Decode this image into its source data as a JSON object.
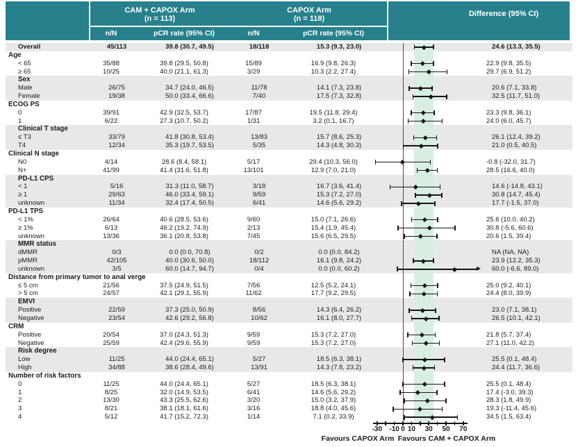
{
  "header": {
    "arm1_title": "CAM + CAPOX Arm",
    "arm1_n": "(n = 113)",
    "arm2_title": "CAPOX Arm",
    "arm2_n": "(n = 118)",
    "nN_label": "n/N",
    "pcr_label": "pCR rate (95% CI)",
    "diff_label": "Difference (95% CI)"
  },
  "footer": {
    "favours_left": "Favours CAPOX Arm",
    "favours_right": "Favours CAM + CAPOX Arm"
  },
  "colors": {
    "header_bg": "#27808C",
    "header_text": "#FFFFFF",
    "row_shade": "#E8E8E8",
    "overall_band": "#D9EEE3",
    "marker": "#141414",
    "zero_line": "#4A4A4A",
    "text": "#1A1A1A"
  },
  "chart_data": {
    "type": "forest",
    "x_axis": {
      "all_ticks": [
        -30,
        -20,
        -10,
        0,
        10,
        20,
        30,
        40,
        50,
        60,
        70
      ],
      "labeled_ticks": [
        -30,
        -10,
        0,
        10,
        30,
        50,
        70
      ],
      "range": [
        -35,
        73
      ],
      "zero_reference": 0,
      "shaded_band": [
        13.3,
        35.5
      ],
      "favours_left": "Favours CAPOX Arm",
      "favours_right": "Favours CAM + CAPOX Arm"
    },
    "arms": [
      {
        "name": "CAM + CAPOX Arm",
        "n": 113
      },
      {
        "name": "CAPOX Arm",
        "n": 118
      }
    ],
    "columns": [
      "n/N",
      "pCR rate (95% CI)",
      "n/N",
      "pCR rate (95% CI)",
      "Difference (95% CI)"
    ],
    "sections": [
      {
        "header": null,
        "shaded": true,
        "rows": [
          {
            "label": "Overall",
            "bold": true,
            "nN1": "45/113",
            "pcr1": "39.8 (30.7, 49.5)",
            "nN2": "18/118",
            "pcr2": "15.3 (9.3, 23.0)",
            "diff": "24.6 (13.3, 35.5)",
            "est": 24.6,
            "lo": 13.3,
            "hi": 35.5
          }
        ]
      },
      {
        "header": "Age",
        "shaded": false,
        "rows": [
          {
            "label": "< 65",
            "nN1": "35/88",
            "pcr1": "39.8 (29.5, 50.8)",
            "nN2": "15/89",
            "pcr2": "16.9 (9.8, 26.3)",
            "diff": "22.9 (9.8, 35.5)",
            "est": 22.9,
            "lo": 9.8,
            "hi": 35.5
          },
          {
            "label": "≥ 65",
            "nN1": "10/25",
            "pcr1": "40.0 (21.1, 61.3)",
            "nN2": "3/29",
            "pcr2": "10.3 (2.2, 27.4)",
            "diff": "29.7 (6.9, 51.2)",
            "est": 29.7,
            "lo": 6.9,
            "hi": 51.2
          }
        ]
      },
      {
        "header": "Sex",
        "shaded": true,
        "rows": [
          {
            "label": "Male",
            "nN1": "26/75",
            "pcr1": "34.7 (24.0, 46.5)",
            "nN2": "11/78",
            "pcr2": "14.1 (7.3, 23.8)",
            "diff": "20.6 (7.1, 33.8)",
            "est": 20.6,
            "lo": 7.1,
            "hi": 33.8
          },
          {
            "label": "Female",
            "nN1": "19/38",
            "pcr1": "50.0 (33.4, 66.6)",
            "nN2": "7/40",
            "pcr2": "17.5 (7.3, 32.8)",
            "diff": "32.5 (11.7, 51.0)",
            "est": 32.5,
            "lo": 11.7,
            "hi": 51.0
          }
        ]
      },
      {
        "header": "ECOG PS",
        "shaded": false,
        "rows": [
          {
            "label": "0",
            "nN1": "39/91",
            "pcr1": "42.9 (32.5, 53.7)",
            "nN2": "17/87",
            "pcr2": "19.5 (11.8, 29.4)",
            "diff": "23.3 (9.8, 36.1)",
            "est": 23.3,
            "lo": 9.8,
            "hi": 36.1
          },
          {
            "label": "1",
            "nN1": "6/22",
            "pcr1": "27.3 (10.7, 50.2)",
            "nN2": "1/31",
            "pcr2": "3.2 (0.1, 16.7)",
            "diff": "24.0 (6.0, 45.7)",
            "est": 24.0,
            "lo": 6.0,
            "hi": 45.7
          }
        ]
      },
      {
        "header": "Clinical T stage",
        "shaded": true,
        "rows": [
          {
            "label": "≤ T3",
            "nN1": "33/79",
            "pcr1": "41.8 (30.8, 53.4)",
            "nN2": "13/83",
            "pcr2": "15.7 (8.6, 25.3)",
            "diff": "26.1 (12.4, 39.2)",
            "est": 26.1,
            "lo": 12.4,
            "hi": 39.2
          },
          {
            "label": "T4",
            "nN1": "12/34",
            "pcr1": "35.3 (19.7, 53.5)",
            "nN2": "5/35",
            "pcr2": "14.3 (4.8, 30.3)",
            "diff": "21.0 (0.5, 40.5)",
            "est": 21.0,
            "lo": 0.5,
            "hi": 40.5
          }
        ]
      },
      {
        "header": "Clinical N stage",
        "shaded": false,
        "rows": [
          {
            "label": "N0",
            "nN1": "4/14",
            "pcr1": "28.6 (8.4, 58.1)",
            "nN2": "5/17",
            "pcr2": "29.4 (10.3, 56.0)",
            "diff": "-0.8 (-32.0, 31.7)",
            "est": -0.8,
            "lo": -32.0,
            "hi": 31.7
          },
          {
            "label": "N+",
            "nN1": "41/99",
            "pcr1": "41.4 (31.6, 51.8)",
            "nN2": "13/101",
            "pcr2": "12.9 (7.0, 21.0)",
            "diff": "28.5 (16.6, 40.0)",
            "est": 28.5,
            "lo": 16.6,
            "hi": 40.0
          }
        ]
      },
      {
        "header": "PD-L1 CPS",
        "shaded": true,
        "rows": [
          {
            "label": "< 1",
            "nN1": "5/16",
            "pcr1": "31.3 (11.0, 58.7)",
            "nN2": "3/18",
            "pcr2": "16.7 (3.6, 41.4)",
            "diff": "14.6 (-14.8, 43.1)",
            "est": 14.6,
            "lo": -14.8,
            "hi": 43.1
          },
          {
            "label": "≥ 1",
            "nN1": "29/63",
            "pcr1": "46.0 (33.4, 59.1)",
            "nN2": "9/59",
            "pcr2": "15.3 (7.2, 27.0)",
            "diff": "30.8 (14.7, 45.4)",
            "est": 30.8,
            "lo": 14.7,
            "hi": 45.4
          },
          {
            "label": "unknown",
            "nN1": "11/34",
            "pcr1": "32.4 (17.4, 50.5)",
            "nN2": "6/41",
            "pcr2": "14.6 (5.6, 29.2)",
            "diff": "17.7 (-1.5, 37.0)",
            "est": 17.7,
            "lo": -1.5,
            "hi": 37.0
          }
        ]
      },
      {
        "header": "PD-L1 TPS",
        "shaded": false,
        "rows": [
          {
            "label": "< 1%",
            "nN1": "26/64",
            "pcr1": "40.6 (28.5, 53.6)",
            "nN2": "9/60",
            "pcr2": "15.0 (7.1, 26.6)",
            "diff": "25.6 (10.0, 40.2)",
            "est": 25.6,
            "lo": 10.0,
            "hi": 40.2
          },
          {
            "label": "≥ 1%",
            "nN1": "6/13",
            "pcr1": "46.2 (19.2, 74.9)",
            "nN2": "2/13",
            "pcr2": "15.4 (1.9, 45.4)",
            "diff": "30.8 (-5.6, 60.6)",
            "est": 30.8,
            "lo": -5.6,
            "hi": 60.6
          },
          {
            "label": "unknown",
            "nN1": "13/36",
            "pcr1": "36.1 (20.8, 53.8)",
            "nN2": "7/45",
            "pcr2": "15.6 (6.5, 29.5)",
            "diff": "20.6 (1.5, 39.4)",
            "est": 20.6,
            "lo": 1.5,
            "hi": 39.4
          }
        ]
      },
      {
        "header": "MMR status",
        "shaded": true,
        "rows": [
          {
            "label": "dMMR",
            "nN1": "0/3",
            "pcr1": "0.0 (0.0, 70.8)",
            "nN2": "0/2",
            "pcr2": "0.0 (0.0, 84.2)",
            "diff": "NA (NA, NA)",
            "est": null,
            "lo": null,
            "hi": null
          },
          {
            "label": "pMMR",
            "nN1": "42/105",
            "pcr1": "40.0 (30.6, 50.0)",
            "nN2": "18/112",
            "pcr2": "16.1 (9.8, 24.2)",
            "diff": "23.9 (12.2, 35.3)",
            "est": 23.9,
            "lo": 12.2,
            "hi": 35.3
          },
          {
            "label": "unknown",
            "nN1": "3/5",
            "pcr1": "60.0 (14.7, 94.7)",
            "nN2": "0/4",
            "pcr2": "0.0 (0.0, 60.2)",
            "diff": "60.0 (-6.6, 89.0)",
            "est": 60.0,
            "lo": -6.6,
            "hi": 89.0,
            "arrow": "right"
          }
        ]
      },
      {
        "header": "Distance from primary tumor to anal verge",
        "shaded": false,
        "rows": [
          {
            "label": "≤ 5 cm",
            "nN1": "21/56",
            "pcr1": "37.5 (24.9, 51.5)",
            "nN2": "7/56",
            "pcr2": "12.5 (5.2, 24.1)",
            "diff": "25.0 (9.2, 40.1)",
            "est": 25.0,
            "lo": 9.2,
            "hi": 40.1
          },
          {
            "label": "> 5 cm",
            "nN1": "24/57",
            "pcr1": "42.1 (29.1, 55.9)",
            "nN2": "11/62",
            "pcr2": "17.7 (9.2, 29.5)",
            "diff": "24.4 (8.0, 39.9)",
            "est": 24.4,
            "lo": 8.0,
            "hi": 39.9
          }
        ]
      },
      {
        "header": "EMVI",
        "shaded": true,
        "rows": [
          {
            "label": "Positive",
            "nN1": "22/59",
            "pcr1": "37.3 (25.0, 50.9)",
            "nN2": "8/56",
            "pcr2": "14.3 (6.4, 26.2)",
            "diff": "23.0 (7.1, 38.1)",
            "est": 23.0,
            "lo": 7.1,
            "hi": 38.1
          },
          {
            "label": "Negative",
            "nN1": "23/54",
            "pcr1": "42.6 (29.2, 56.8)",
            "nN2": "10/62",
            "pcr2": "16.1 (8.0, 27.7)",
            "diff": "26.5 (10.1, 42.1)",
            "est": 26.5,
            "lo": 10.1,
            "hi": 42.1
          }
        ]
      },
      {
        "header": "CRM",
        "shaded": false,
        "rows": [
          {
            "label": "Positive",
            "nN1": "20/54",
            "pcr1": "37.0 (24.3, 51.3)",
            "nN2": "9/59",
            "pcr2": "15.3 (7.2, 27.0)",
            "diff": "21.8 (5.7, 37.4)",
            "est": 21.8,
            "lo": 5.7,
            "hi": 37.4
          },
          {
            "label": "Negative",
            "nN1": "25/59",
            "pcr1": "42.4 (29.6, 55.9)",
            "nN2": "9/59",
            "pcr2": "15.3 (7.2, 27.0)",
            "diff": "27.1 (11.0, 42.2)",
            "est": 27.1,
            "lo": 11.0,
            "hi": 42.2
          }
        ]
      },
      {
        "header": "Risk degree",
        "shaded": true,
        "rows": [
          {
            "label": "Low",
            "nN1": "11/25",
            "pcr1": "44.0 (24.4, 65.1)",
            "nN2": "5/27",
            "pcr2": "18.5 (6.3, 38.1)",
            "diff": "25.5 (0.1, 48.4)",
            "est": 25.5,
            "lo": 0.1,
            "hi": 48.4
          },
          {
            "label": "High",
            "nN1": "34/88",
            "pcr1": "38.6 (28.4, 49.6)",
            "nN2": "13/91",
            "pcr2": "14.3 (7.8, 23.2)",
            "diff": "24.4 (11.7, 36.6)",
            "est": 24.4,
            "lo": 11.7,
            "hi": 36.6
          }
        ]
      },
      {
        "header": "Number of risk factors",
        "shaded": false,
        "rows": [
          {
            "label": "0",
            "nN1": "11/25",
            "pcr1": "44.0 (24.4, 65.1)",
            "nN2": "5/27",
            "pcr2": "18.5 (6.3, 38.1)",
            "diff": "25.5 (0.1, 48.4)",
            "est": 25.5,
            "lo": 0.1,
            "hi": 48.4
          },
          {
            "label": "1",
            "nN1": "8/25",
            "pcr1": "32.0 (14.9, 53.5)",
            "nN2": "6/41",
            "pcr2": "14.6 (5.6, 29.2)",
            "diff": "17.4 (-3.0, 39.3)",
            "est": 17.4,
            "lo": -3.0,
            "hi": 39.3
          },
          {
            "label": "2",
            "nN1": "13/30",
            "pcr1": "43.3 (25.5, 62.6)",
            "nN2": "3/20",
            "pcr2": "15.0 (3.2, 37.9)",
            "diff": "28.3 (1.8, 49.9)",
            "est": 28.3,
            "lo": 1.8,
            "hi": 49.9
          },
          {
            "label": "3",
            "nN1": "8/21",
            "pcr1": "38.1 (18.1, 61.6)",
            "nN2": "3/16",
            "pcr2": "18.8 (4.0, 45.6)",
            "diff": "19.3 (-11.4, 45.6)",
            "est": 19.3,
            "lo": -11.4,
            "hi": 45.6
          },
          {
            "label": "4",
            "nN1": "5/12",
            "pcr1": "41.7 (15.2, 72.3)",
            "nN2": "1/14",
            "pcr2": "7.1 (0.2, 33.9)",
            "diff": "34.5 (1.5, 63.4)",
            "est": 34.5,
            "lo": 1.5,
            "hi": 63.4
          }
        ]
      }
    ]
  }
}
